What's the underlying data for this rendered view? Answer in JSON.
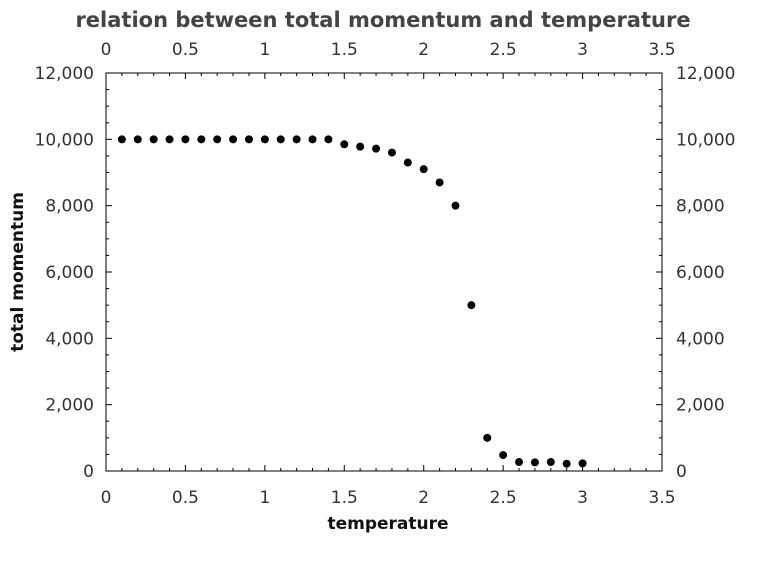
{
  "chart_data": {
    "type": "scatter",
    "title": "relation between total momentum and temperature",
    "xlabel": "temperature",
    "ylabel": "total momentum",
    "xlim": [
      0,
      3.5
    ],
    "ylim": [
      0,
      12000
    ],
    "x_ticks": [
      0,
      0.5,
      1,
      1.5,
      2,
      2.5,
      3,
      3.5
    ],
    "x_tick_labels": [
      "0",
      "0.5",
      "1",
      "1.5",
      "2",
      "2.5",
      "3",
      "3.5"
    ],
    "y_ticks": [
      0,
      2000,
      4000,
      6000,
      8000,
      10000,
      12000
    ],
    "y_tick_labels": [
      "0",
      "2,000",
      "4,000",
      "6,000",
      "8,000",
      "10,000",
      "12,000"
    ],
    "mirror_axes": true,
    "grid": false,
    "marker_color": "#000000",
    "series": [
      {
        "x": [
          0.1,
          0.2,
          0.3,
          0.4,
          0.5,
          0.6,
          0.7,
          0.8,
          0.9,
          1.0,
          1.1,
          1.2,
          1.3,
          1.4,
          1.5,
          1.6,
          1.7,
          1.8,
          1.9,
          2.0,
          2.1,
          2.2,
          2.3,
          2.4,
          2.5,
          2.6,
          2.7,
          2.8,
          2.9,
          3.0
        ],
        "y": [
          10000,
          10000,
          10000,
          10000,
          10000,
          10000,
          10000,
          10000,
          10000,
          10000,
          10000,
          10000,
          10000,
          10000,
          9850,
          9780,
          9720,
          9600,
          9300,
          9100,
          8700,
          8000,
          5000,
          1000,
          480,
          270,
          260,
          270,
          220,
          230
        ]
      }
    ]
  }
}
